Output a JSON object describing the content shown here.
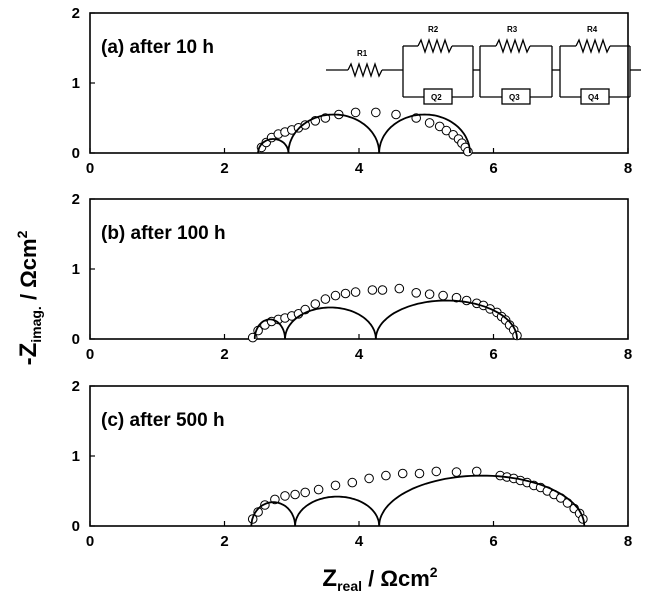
{
  "figure": {
    "ylabel_main": "-Z",
    "ylabel_sub": "imag.",
    "ylabel_unit": " / Ωcm",
    "ylabel_sup": "2",
    "xlabel_main": "Z",
    "xlabel_sub": "real",
    "xlabel_unit": "  / Ωcm",
    "xlabel_sup": "2"
  },
  "circuit": {
    "labels": [
      "R1",
      "R2",
      "R3",
      "R4",
      "Q2",
      "Q3",
      "Q4"
    ]
  },
  "chart_data": [
    {
      "type": "scatter",
      "panel_label": "(a) after 10 h",
      "xlim": [
        0,
        8
      ],
      "ylim": [
        0,
        2
      ],
      "x_ticks": [
        "0",
        "2",
        "4",
        "6",
        "8"
      ],
      "y_ticks": [
        "0",
        "1",
        "2"
      ],
      "series": [
        {
          "kind": "measured",
          "marker": "open-circle",
          "points": [
            [
              2.55,
              0.08
            ],
            [
              2.62,
              0.15
            ],
            [
              2.7,
              0.22
            ],
            [
              2.8,
              0.27
            ],
            [
              2.9,
              0.3
            ],
            [
              3.0,
              0.33
            ],
            [
              3.1,
              0.36
            ],
            [
              3.2,
              0.4
            ],
            [
              3.35,
              0.46
            ],
            [
              3.5,
              0.5
            ],
            [
              3.7,
              0.55
            ],
            [
              3.95,
              0.58
            ],
            [
              4.25,
              0.58
            ],
            [
              4.55,
              0.55
            ],
            [
              4.85,
              0.5
            ],
            [
              5.05,
              0.43
            ],
            [
              5.2,
              0.38
            ],
            [
              5.3,
              0.32
            ],
            [
              5.4,
              0.26
            ],
            [
              5.48,
              0.2
            ],
            [
              5.53,
              0.14
            ],
            [
              5.58,
              0.08
            ],
            [
              5.62,
              0.02
            ]
          ]
        },
        {
          "kind": "fitted",
          "arcs": [
            [
              2.5,
              2.95,
              0.2
            ],
            [
              2.95,
              4.3,
              0.55
            ],
            [
              4.3,
              5.65,
              0.55
            ]
          ]
        }
      ]
    },
    {
      "type": "scatter",
      "panel_label": "(b) after 100 h",
      "xlim": [
        0,
        8
      ],
      "ylim": [
        0,
        2
      ],
      "x_ticks": [
        "0",
        "2",
        "4",
        "6",
        "8"
      ],
      "y_ticks": [
        "0",
        "1",
        "2"
      ],
      "series": [
        {
          "kind": "measured",
          "marker": "open-circle",
          "points": [
            [
              2.42,
              0.02
            ],
            [
              2.5,
              0.12
            ],
            [
              2.6,
              0.2
            ],
            [
              2.7,
              0.25
            ],
            [
              2.8,
              0.28
            ],
            [
              2.9,
              0.3
            ],
            [
              3.0,
              0.33
            ],
            [
              3.1,
              0.36
            ],
            [
              3.2,
              0.42
            ],
            [
              3.35,
              0.5
            ],
            [
              3.5,
              0.57
            ],
            [
              3.65,
              0.62
            ],
            [
              3.8,
              0.65
            ],
            [
              3.95,
              0.67
            ],
            [
              4.2,
              0.7
            ],
            [
              4.35,
              0.7
            ],
            [
              4.6,
              0.72
            ],
            [
              4.85,
              0.66
            ],
            [
              5.05,
              0.64
            ],
            [
              5.25,
              0.62
            ],
            [
              5.45,
              0.59
            ],
            [
              5.6,
              0.55
            ],
            [
              5.75,
              0.51
            ],
            [
              5.85,
              0.48
            ],
            [
              5.95,
              0.43
            ],
            [
              6.05,
              0.38
            ],
            [
              6.12,
              0.32
            ],
            [
              6.18,
              0.27
            ],
            [
              6.24,
              0.2
            ],
            [
              6.3,
              0.13
            ],
            [
              6.35,
              0.05
            ]
          ]
        },
        {
          "kind": "fitted",
          "arcs": [
            [
              2.45,
              2.9,
              0.28
            ],
            [
              2.9,
              4.25,
              0.45
            ],
            [
              4.25,
              6.35,
              0.55
            ]
          ]
        }
      ]
    },
    {
      "type": "scatter",
      "panel_label": "(c) after 500 h",
      "xlim": [
        0,
        8
      ],
      "ylim": [
        0,
        2
      ],
      "x_ticks": [
        "0",
        "2",
        "4",
        "6",
        "8"
      ],
      "y_ticks": [
        "0",
        "1",
        "2"
      ],
      "series": [
        {
          "kind": "measured",
          "marker": "open-circle",
          "points": [
            [
              2.42,
              0.1
            ],
            [
              2.5,
              0.2
            ],
            [
              2.6,
              0.3
            ],
            [
              2.75,
              0.38
            ],
            [
              2.9,
              0.43
            ],
            [
              3.05,
              0.45
            ],
            [
              3.2,
              0.48
            ],
            [
              3.4,
              0.52
            ],
            [
              3.65,
              0.58
            ],
            [
              3.9,
              0.62
            ],
            [
              4.15,
              0.68
            ],
            [
              4.4,
              0.72
            ],
            [
              4.65,
              0.75
            ],
            [
              4.9,
              0.75
            ],
            [
              5.15,
              0.78
            ],
            [
              5.45,
              0.77
            ],
            [
              5.75,
              0.78
            ],
            [
              6.1,
              0.72
            ],
            [
              6.2,
              0.7
            ],
            [
              6.3,
              0.68
            ],
            [
              6.4,
              0.65
            ],
            [
              6.5,
              0.62
            ],
            [
              6.6,
              0.58
            ],
            [
              6.7,
              0.55
            ],
            [
              6.8,
              0.5
            ],
            [
              6.9,
              0.45
            ],
            [
              7.0,
              0.4
            ],
            [
              7.1,
              0.33
            ],
            [
              7.2,
              0.25
            ],
            [
              7.28,
              0.18
            ],
            [
              7.33,
              0.1
            ]
          ]
        },
        {
          "kind": "fitted",
          "arcs": [
            [
              2.4,
              3.05,
              0.34
            ],
            [
              3.05,
              4.3,
              0.42
            ],
            [
              4.3,
              7.35,
              0.72
            ]
          ]
        }
      ]
    }
  ]
}
